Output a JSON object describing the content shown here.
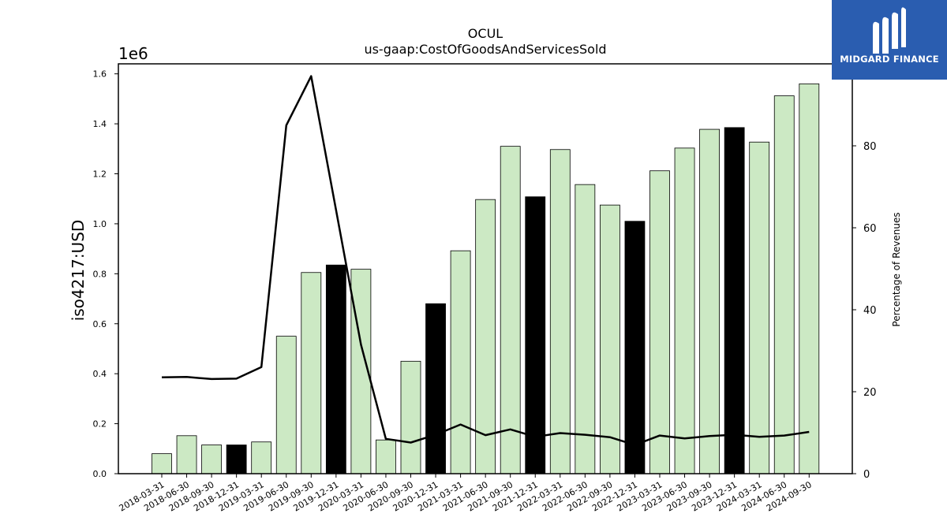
{
  "logo": {
    "text": "MIDGARD FINANCE",
    "icon": "midgard-m-logo-icon",
    "background": "#2a5db0"
  },
  "chart_data": {
    "type": "bar",
    "title": "OCUL",
    "subtitle": "us-gaap:CostOfGoodsAndServicesSold",
    "ylabel": "iso4217:USD",
    "y_offset_label": "1e6",
    "y2label": "Percentage of Revenues",
    "ylim": [
      0,
      1640000
    ],
    "y2lim": [
      0,
      100
    ],
    "yticks": [
      0.0,
      0.2,
      0.4,
      0.6,
      0.8,
      1.0,
      1.2,
      1.4,
      1.6
    ],
    "y2ticks": [
      0,
      20,
      40,
      60,
      80
    ],
    "categories": [
      "2018-03-31",
      "2018-06-30",
      "2018-09-30",
      "2018-12-31",
      "2019-03-31",
      "2019-06-30",
      "2019-09-30",
      "2019-12-31",
      "2020-03-31",
      "2020-06-30",
      "2020-09-30",
      "2020-12-31",
      "2021-03-31",
      "2021-06-30",
      "2021-09-30",
      "2021-12-31",
      "2022-03-31",
      "2022-06-30",
      "2022-09-30",
      "2022-12-31",
      "2023-03-31",
      "2023-06-30",
      "2023-09-30",
      "2023-12-31",
      "2024-03-31",
      "2024-06-30",
      "2024-09-30"
    ],
    "series": [
      {
        "kind": "bar",
        "values": [
          80000,
          152000,
          115000,
          115000,
          127000,
          550000,
          805000,
          835000,
          818000,
          135000,
          450000,
          680000,
          892000,
          1097000,
          1310000,
          1108000,
          1297000,
          1157000,
          1075000,
          1010000,
          1212000,
          1303000,
          1378000,
          1385000,
          1327000,
          1512000,
          1560000
        ],
        "highlight": [
          false,
          false,
          false,
          true,
          false,
          false,
          false,
          true,
          false,
          false,
          false,
          true,
          false,
          false,
          false,
          true,
          false,
          false,
          false,
          true,
          false,
          false,
          false,
          true,
          false,
          false,
          false
        ],
        "color": "#cce9c4",
        "highlight_color": "#000000"
      },
      {
        "kind": "line",
        "axis": "right",
        "values": [
          23.5,
          23.6,
          23.1,
          23.2,
          26.0,
          85.0,
          97.0,
          null,
          31.5,
          8.5,
          7.6,
          9.5,
          12.0,
          9.4,
          10.8,
          9.0,
          9.9,
          9.5,
          8.9,
          7.0,
          9.3,
          8.6,
          9.2,
          9.5,
          9.0,
          9.3,
          10.2
        ],
        "color": "#000000"
      }
    ],
    "grid": false,
    "legend": "none"
  }
}
